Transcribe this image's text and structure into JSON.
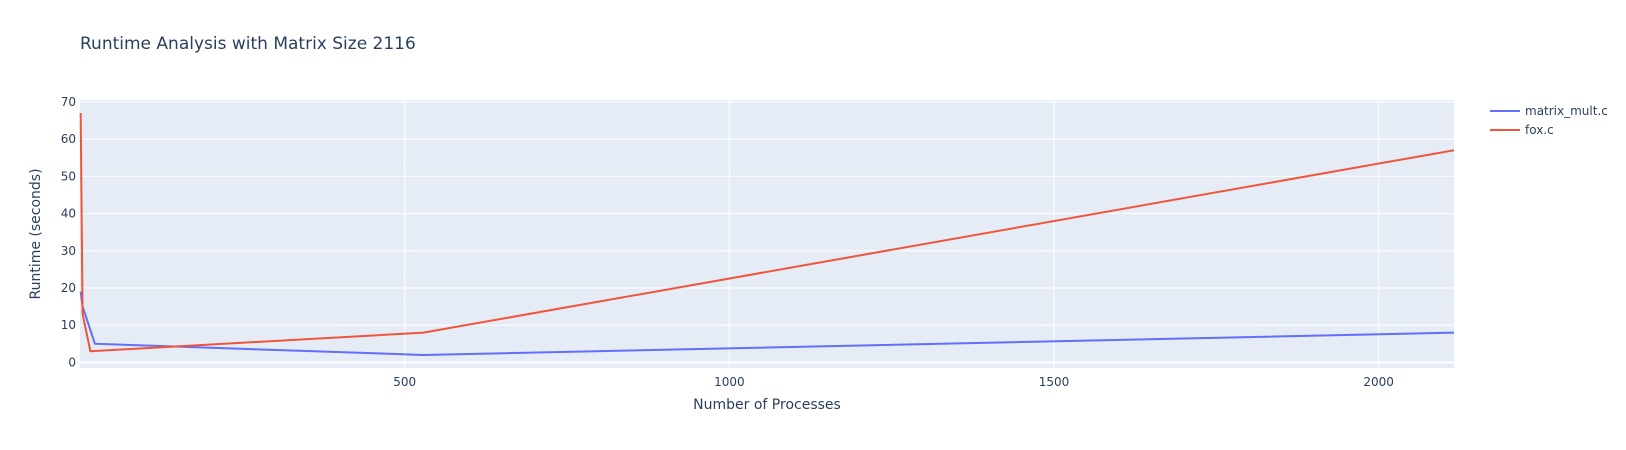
{
  "chart_data": {
    "type": "line",
    "title": "Runtime Analysis with Matrix Size 2116",
    "xlabel": "Number of Processes",
    "ylabel": "Runtime (seconds)",
    "xlim": [
      0,
      2116
    ],
    "ylim": [
      -1.5,
      70.5
    ],
    "x_ticks": [
      500,
      1000,
      1500,
      2000
    ],
    "y_ticks": [
      0,
      10,
      20,
      30,
      40,
      50,
      60,
      70
    ],
    "grid": true,
    "legend": "top-right",
    "series": [
      {
        "name": "matrix_mult.c",
        "color": "#636efa",
        "x": [
          1,
          4,
          23,
          529,
          2116
        ],
        "y": [
          19,
          15,
          5,
          2,
          8
        ]
      },
      {
        "name": "fox.c",
        "color": "#ef553b",
        "x": [
          1,
          4,
          16,
          529,
          2116
        ],
        "y": [
          67,
          13,
          3,
          8,
          57
        ]
      }
    ]
  }
}
